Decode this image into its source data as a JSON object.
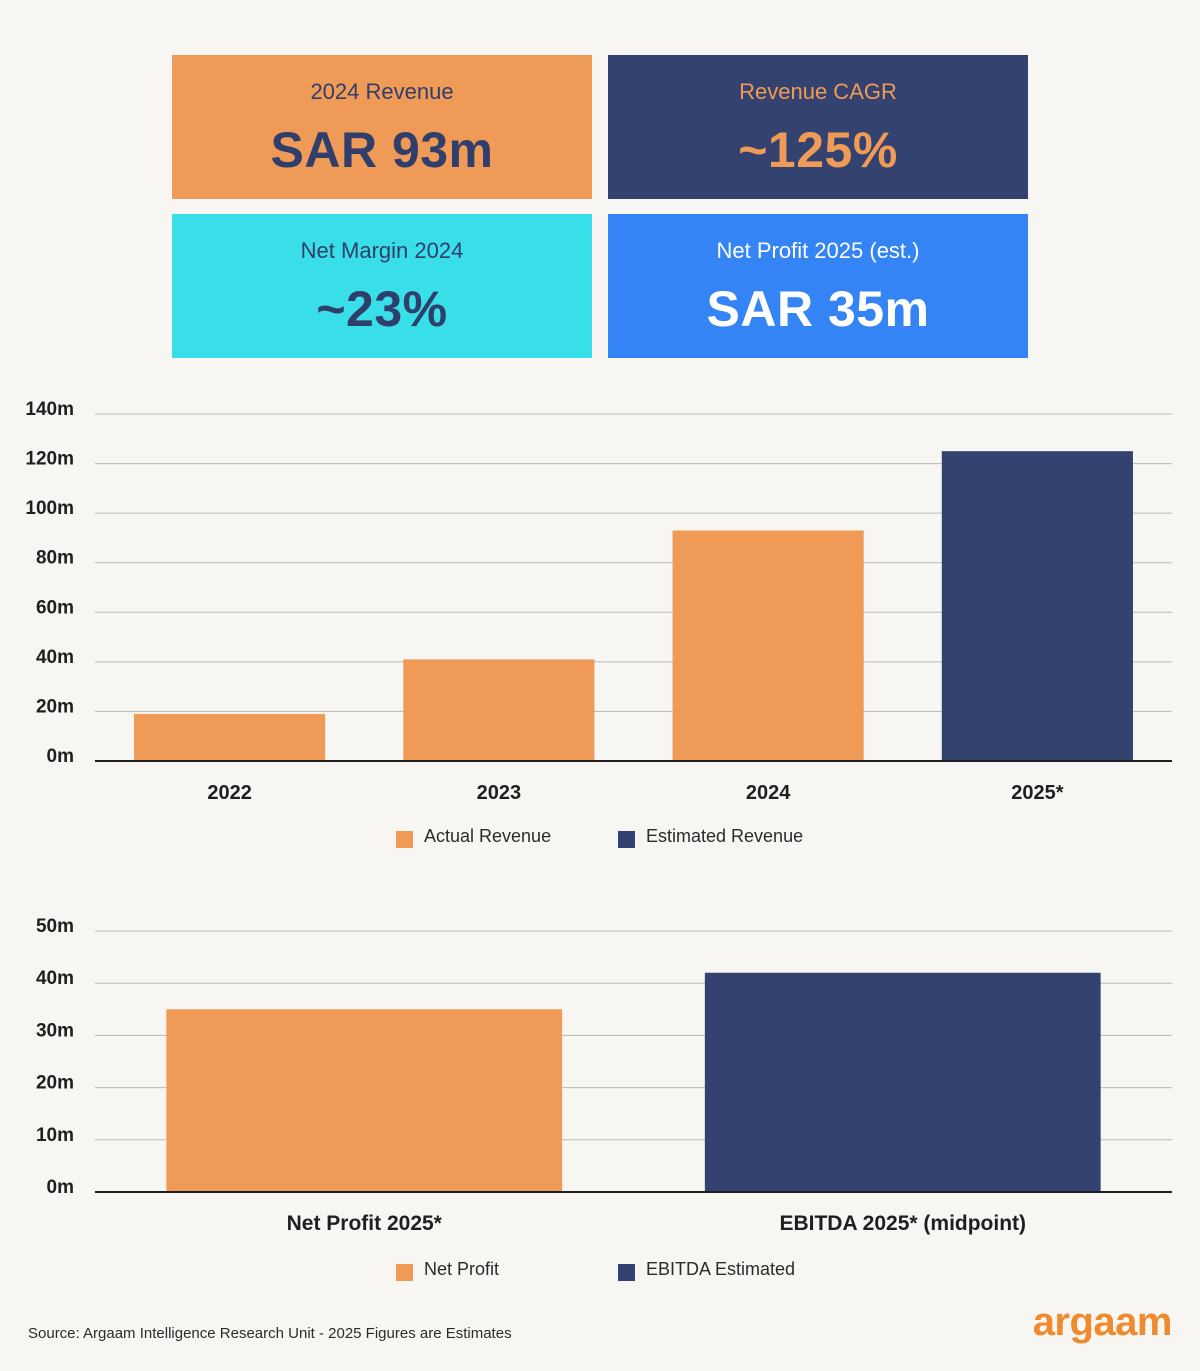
{
  "kpis": [
    {
      "label": "2024 Revenue",
      "value": "SAR 93m",
      "bg": "#f09a57",
      "label_color": "#2f3e6a",
      "value_color": "#2f3e6a"
    },
    {
      "label": "Revenue CAGR",
      "value": "~125%",
      "bg": "#33426f",
      "label_color": "#f09a57",
      "value_color": "#f09a57"
    },
    {
      "label": "Net Margin 2024",
      "value": "~23%",
      "bg": "#38dfe9",
      "label_color": "#2f3e6a",
      "value_color": "#2f3e6a"
    },
    {
      "label": "Net Profit 2025 (est.)",
      "value": "SAR 35m",
      "bg": "#3584f5",
      "label_color": "#ffffff",
      "value_color": "#ffffff"
    }
  ],
  "chart_data": [
    {
      "type": "bar",
      "categories": [
        "2022",
        "2023",
        "2024",
        "2025*"
      ],
      "values": [
        19,
        41,
        93,
        125
      ],
      "bar_colors": [
        "#f09a57",
        "#f09a57",
        "#f09a57",
        "#33426f"
      ],
      "ylim": [
        0,
        140
      ],
      "yticks": [
        "0m",
        "20m",
        "40m",
        "60m",
        "80m",
        "100m",
        "120m",
        "140m"
      ],
      "grid": true,
      "legend": [
        {
          "label": "Actual Revenue",
          "color": "#f09a57"
        },
        {
          "label": "Estimated Revenue",
          "color": "#33426f"
        }
      ],
      "legend_position": "bottom-center"
    },
    {
      "type": "bar",
      "categories": [
        "Net Profit 2025*",
        "EBITDA 2025* (midpoint)"
      ],
      "values": [
        35,
        42
      ],
      "bar_colors": [
        "#f09a57",
        "#33426f"
      ],
      "ylim": [
        0,
        50
      ],
      "yticks": [
        "0m",
        "10m",
        "20m",
        "30m",
        "40m",
        "50m"
      ],
      "grid": true,
      "legend": [
        {
          "label": "Net Profit",
          "color": "#f09a57"
        },
        {
          "label": "EBITDA Estimated",
          "color": "#33426f"
        }
      ],
      "legend_position": "bottom-center"
    }
  ],
  "footer": {
    "source": "Source: Argaam Intelligence Research Unit - 2025 Figures are Estimates",
    "logo": "argaam"
  },
  "colors": {
    "background": "#f8f6f3",
    "orange": "#f09a57",
    "navy": "#33426f",
    "logo": "#f08a2e"
  }
}
